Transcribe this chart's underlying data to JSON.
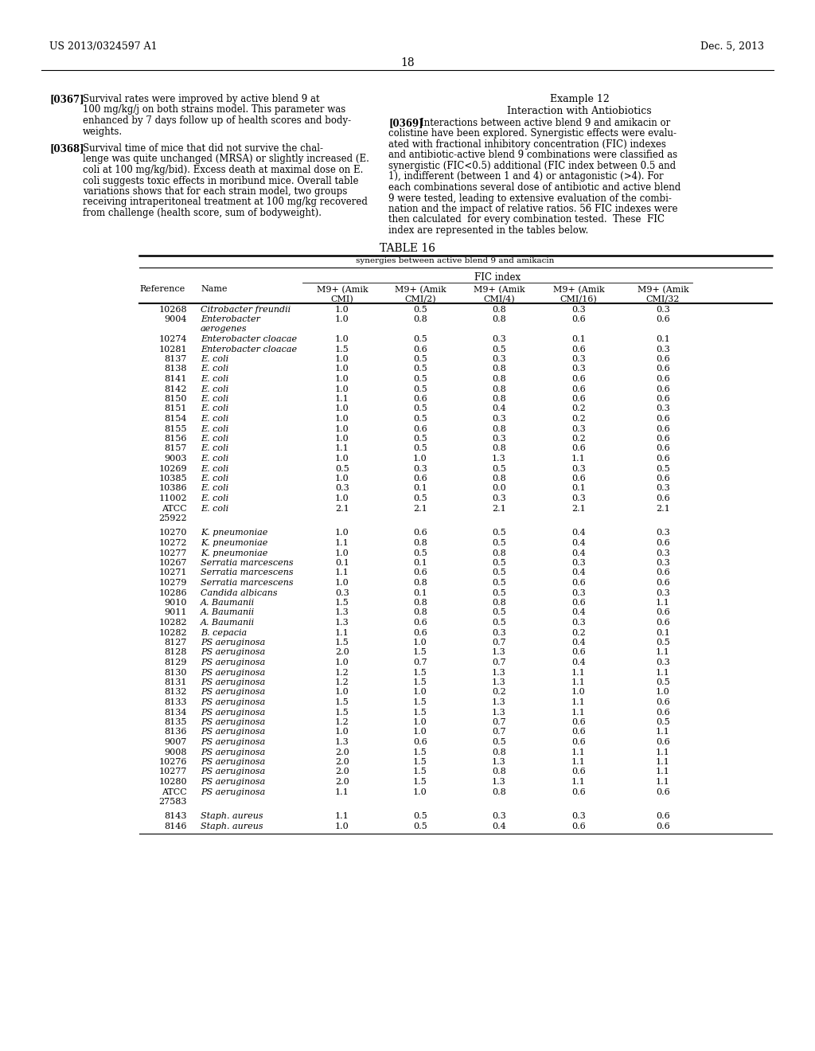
{
  "page_number": "18",
  "patent_left": "US 2013/0324597 A1",
  "patent_right": "Dec. 5, 2013",
  "left_paragraphs": [
    {
      "tag": "[0367]",
      "lines": [
        "Survival rates were improved by active blend 9 at",
        "100 mg/kg/j on both strains model. This parameter was",
        "enhanced by 7 days follow up of health scores and body-",
        "weights."
      ]
    },
    {
      "tag": "[0368]",
      "lines": [
        "Survival time of mice that did not survive the chal-",
        "lenge was quite unchanged (MRSA) or slightly increased (E.",
        "coli at 100 mg/kg/bid). Excess death at maximal dose on E.",
        "coli suggests toxic effects in moribund mice. Overall table",
        "variations shows that for each strain model, two groups",
        "receiving intraperitoneal treatment at 100 mg/kg recovered",
        "from challenge (health score, sum of bodyweight)."
      ]
    }
  ],
  "right_col_title": "Example 12",
  "right_col_subtitle": "Interaction with Antiobiotics",
  "right_paragraph": {
    "tag": "[0369]",
    "lines": [
      "Interactions between active blend 9 and amikacin or",
      "colistine have been explored. Synergistic effects were evalu-",
      "ated with fractional inhibitory concentration (FIC) indexes",
      "and antibiotic-active blend 9 combinations were classified as",
      "synergistic (FIC<0.5) additional (FIC index between 0.5 and",
      "1), indifferent (between 1 and 4) or antagonistic (>4). For",
      "each combinations several dose of antibiotic and active blend",
      "9 were tested, leading to extensive evaluation of the combi-",
      "nation and the impact of relative ratios. 56 FIC indexes were",
      "then calculated  for every combination tested.  These  FIC",
      "index are represented in the tables below."
    ]
  },
  "table_title": "TABLE 16",
  "table_subtitle": "synergies between active blend 9 and amikacin",
  "col_headers_line1": [
    "M9+ (Amik",
    "M9+ (Amik",
    "M9+ (Amik",
    "M9+ (Amik",
    "M9+ (Amik"
  ],
  "col_headers_line2": [
    "CMI)",
    "CMI/2)",
    "CMI/4)",
    "CMI/16)",
    "CMI/32"
  ],
  "group_header": "FIC index",
  "rows": [
    {
      "ref": "10268",
      "name": "Citrobacter freundii",
      "vals": [
        "1.0",
        "0.5",
        "0.8",
        "0.3",
        "0.3"
      ],
      "name2": null,
      "blank_before": false
    },
    {
      "ref": "9004",
      "name": "Enterobacter",
      "vals": [
        "1.0",
        "0.8",
        "0.8",
        "0.6",
        "0.6"
      ],
      "name2": "aerogenes",
      "blank_before": false
    },
    {
      "ref": "10274",
      "name": "Enterobacter cloacae",
      "vals": [
        "1.0",
        "0.5",
        "0.3",
        "0.1",
        "0.1"
      ],
      "name2": null,
      "blank_before": false
    },
    {
      "ref": "10281",
      "name": "Enterobacter cloacae",
      "vals": [
        "1.5",
        "0.6",
        "0.5",
        "0.6",
        "0.3"
      ],
      "name2": null,
      "blank_before": false
    },
    {
      "ref": "8137",
      "name": "E. coli",
      "vals": [
        "1.0",
        "0.5",
        "0.3",
        "0.3",
        "0.6"
      ],
      "name2": null,
      "blank_before": false
    },
    {
      "ref": "8138",
      "name": "E. coli",
      "vals": [
        "1.0",
        "0.5",
        "0.8",
        "0.3",
        "0.6"
      ],
      "name2": null,
      "blank_before": false
    },
    {
      "ref": "8141",
      "name": "E. coli",
      "vals": [
        "1.0",
        "0.5",
        "0.8",
        "0.6",
        "0.6"
      ],
      "name2": null,
      "blank_before": false
    },
    {
      "ref": "8142",
      "name": "E. coli",
      "vals": [
        "1.0",
        "0.5",
        "0.8",
        "0.6",
        "0.6"
      ],
      "name2": null,
      "blank_before": false
    },
    {
      "ref": "8150",
      "name": "E. coli",
      "vals": [
        "1.1",
        "0.6",
        "0.8",
        "0.6",
        "0.6"
      ],
      "name2": null,
      "blank_before": false
    },
    {
      "ref": "8151",
      "name": "E. coli",
      "vals": [
        "1.0",
        "0.5",
        "0.4",
        "0.2",
        "0.3"
      ],
      "name2": null,
      "blank_before": false
    },
    {
      "ref": "8154",
      "name": "E. coli",
      "vals": [
        "1.0",
        "0.5",
        "0.3",
        "0.2",
        "0.6"
      ],
      "name2": null,
      "blank_before": false
    },
    {
      "ref": "8155",
      "name": "E. coli",
      "vals": [
        "1.0",
        "0.6",
        "0.8",
        "0.3",
        "0.6"
      ],
      "name2": null,
      "blank_before": false
    },
    {
      "ref": "8156",
      "name": "E. coli",
      "vals": [
        "1.0",
        "0.5",
        "0.3",
        "0.2",
        "0.6"
      ],
      "name2": null,
      "blank_before": false
    },
    {
      "ref": "8157",
      "name": "E. coli",
      "vals": [
        "1.1",
        "0.5",
        "0.8",
        "0.6",
        "0.6"
      ],
      "name2": null,
      "blank_before": false
    },
    {
      "ref": "9003",
      "name": "E. coli",
      "vals": [
        "1.0",
        "1.0",
        "1.3",
        "1.1",
        "0.6"
      ],
      "name2": null,
      "blank_before": false
    },
    {
      "ref": "10269",
      "name": "E. coli",
      "vals": [
        "0.5",
        "0.3",
        "0.5",
        "0.3",
        "0.5"
      ],
      "name2": null,
      "blank_before": false
    },
    {
      "ref": "10385",
      "name": "E. coli",
      "vals": [
        "1.0",
        "0.6",
        "0.8",
        "0.6",
        "0.6"
      ],
      "name2": null,
      "blank_before": false
    },
    {
      "ref": "10386",
      "name": "E. coli",
      "vals": [
        "0.3",
        "0.1",
        "0.0",
        "0.1",
        "0.3"
      ],
      "name2": null,
      "blank_before": false
    },
    {
      "ref": "11002",
      "name": "E. coli",
      "vals": [
        "1.0",
        "0.5",
        "0.3",
        "0.3",
        "0.6"
      ],
      "name2": null,
      "blank_before": false
    },
    {
      "ref": "ATCC",
      "name": "E. coli",
      "vals": [
        "2.1",
        "2.1",
        "2.1",
        "2.1",
        "2.1"
      ],
      "name2": null,
      "blank_before": false,
      "ref2": "25922"
    },
    {
      "ref": "10270",
      "name": "K. pneumoniae",
      "vals": [
        "1.0",
        "0.6",
        "0.5",
        "0.4",
        "0.3"
      ],
      "name2": null,
      "blank_before": true
    },
    {
      "ref": "10272",
      "name": "K. pneumoniae",
      "vals": [
        "1.1",
        "0.8",
        "0.5",
        "0.4",
        "0.6"
      ],
      "name2": null,
      "blank_before": false
    },
    {
      "ref": "10277",
      "name": "K. pneumoniae",
      "vals": [
        "1.0",
        "0.5",
        "0.8",
        "0.4",
        "0.3"
      ],
      "name2": null,
      "blank_before": false
    },
    {
      "ref": "10267",
      "name": "Serratia marcescens",
      "vals": [
        "0.1",
        "0.1",
        "0.5",
        "0.3",
        "0.3"
      ],
      "name2": null,
      "blank_before": false
    },
    {
      "ref": "10271",
      "name": "Serratia marcescens",
      "vals": [
        "1.1",
        "0.6",
        "0.5",
        "0.4",
        "0.6"
      ],
      "name2": null,
      "blank_before": false
    },
    {
      "ref": "10279",
      "name": "Serratia marcescens",
      "vals": [
        "1.0",
        "0.8",
        "0.5",
        "0.6",
        "0.6"
      ],
      "name2": null,
      "blank_before": false
    },
    {
      "ref": "10286",
      "name": "Candida albicans",
      "vals": [
        "0.3",
        "0.1",
        "0.5",
        "0.3",
        "0.3"
      ],
      "name2": null,
      "blank_before": false
    },
    {
      "ref": "9010",
      "name": "A. Baumanii",
      "vals": [
        "1.5",
        "0.8",
        "0.8",
        "0.6",
        "1.1"
      ],
      "name2": null,
      "blank_before": false
    },
    {
      "ref": "9011",
      "name": "A. Baumanii",
      "vals": [
        "1.3",
        "0.8",
        "0.5",
        "0.4",
        "0.6"
      ],
      "name2": null,
      "blank_before": false
    },
    {
      "ref": "10282",
      "name": "A. Baumanii",
      "vals": [
        "1.3",
        "0.6",
        "0.5",
        "0.3",
        "0.6"
      ],
      "name2": null,
      "blank_before": false
    },
    {
      "ref": "10282",
      "name": "B. cepacia",
      "vals": [
        "1.1",
        "0.6",
        "0.3",
        "0.2",
        "0.1"
      ],
      "name2": null,
      "blank_before": false
    },
    {
      "ref": "8127",
      "name": "PS aeruginosa",
      "vals": [
        "1.5",
        "1.0",
        "0.7",
        "0.4",
        "0.5"
      ],
      "name2": null,
      "blank_before": false
    },
    {
      "ref": "8128",
      "name": "PS aeruginosa",
      "vals": [
        "2.0",
        "1.5",
        "1.3",
        "0.6",
        "1.1"
      ],
      "name2": null,
      "blank_before": false
    },
    {
      "ref": "8129",
      "name": "PS aeruginosa",
      "vals": [
        "1.0",
        "0.7",
        "0.7",
        "0.4",
        "0.3"
      ],
      "name2": null,
      "blank_before": false
    },
    {
      "ref": "8130",
      "name": "PS aeruginosa",
      "vals": [
        "1.2",
        "1.5",
        "1.3",
        "1.1",
        "1.1"
      ],
      "name2": null,
      "blank_before": false
    },
    {
      "ref": "8131",
      "name": "PS aeruginosa",
      "vals": [
        "1.2",
        "1.5",
        "1.3",
        "1.1",
        "0.5"
      ],
      "name2": null,
      "blank_before": false
    },
    {
      "ref": "8132",
      "name": "PS aeruginosa",
      "vals": [
        "1.0",
        "1.0",
        "0.2",
        "1.0",
        "1.0"
      ],
      "name2": null,
      "blank_before": false
    },
    {
      "ref": "8133",
      "name": "PS aeruginosa",
      "vals": [
        "1.5",
        "1.5",
        "1.3",
        "1.1",
        "0.6"
      ],
      "name2": null,
      "blank_before": false
    },
    {
      "ref": "8134",
      "name": "PS aeruginosa",
      "vals": [
        "1.5",
        "1.5",
        "1.3",
        "1.1",
        "0.6"
      ],
      "name2": null,
      "blank_before": false
    },
    {
      "ref": "8135",
      "name": "PS aeruginosa",
      "vals": [
        "1.2",
        "1.0",
        "0.7",
        "0.6",
        "0.5"
      ],
      "name2": null,
      "blank_before": false
    },
    {
      "ref": "8136",
      "name": "PS aeruginosa",
      "vals": [
        "1.0",
        "1.0",
        "0.7",
        "0.6",
        "1.1"
      ],
      "name2": null,
      "blank_before": false
    },
    {
      "ref": "9007",
      "name": "PS aeruginosa",
      "vals": [
        "1.3",
        "0.6",
        "0.5",
        "0.6",
        "0.6"
      ],
      "name2": null,
      "blank_before": false
    },
    {
      "ref": "9008",
      "name": "PS aeruginosa",
      "vals": [
        "2.0",
        "1.5",
        "0.8",
        "1.1",
        "1.1"
      ],
      "name2": null,
      "blank_before": false
    },
    {
      "ref": "10276",
      "name": "PS aeruginosa",
      "vals": [
        "2.0",
        "1.5",
        "1.3",
        "1.1",
        "1.1"
      ],
      "name2": null,
      "blank_before": false
    },
    {
      "ref": "10277",
      "name": "PS aeruginosa",
      "vals": [
        "2.0",
        "1.5",
        "0.8",
        "0.6",
        "1.1"
      ],
      "name2": null,
      "blank_before": false
    },
    {
      "ref": "10280",
      "name": "PS aeruginosa",
      "vals": [
        "2.0",
        "1.5",
        "1.3",
        "1.1",
        "1.1"
      ],
      "name2": null,
      "blank_before": false
    },
    {
      "ref": "ATCC",
      "name": "PS aeruginosa",
      "vals": [
        "1.1",
        "1.0",
        "0.8",
        "0.6",
        "0.6"
      ],
      "name2": null,
      "blank_before": false,
      "ref2": "27583"
    },
    {
      "ref": "8143",
      "name": "Staph. aureus",
      "vals": [
        "1.1",
        "0.5",
        "0.3",
        "0.3",
        "0.6"
      ],
      "name2": null,
      "blank_before": true
    },
    {
      "ref": "8146",
      "name": "Staph. aureus",
      "vals": [
        "1.0",
        "0.5",
        "0.4",
        "0.6",
        "0.6"
      ],
      "name2": null,
      "blank_before": false
    }
  ]
}
